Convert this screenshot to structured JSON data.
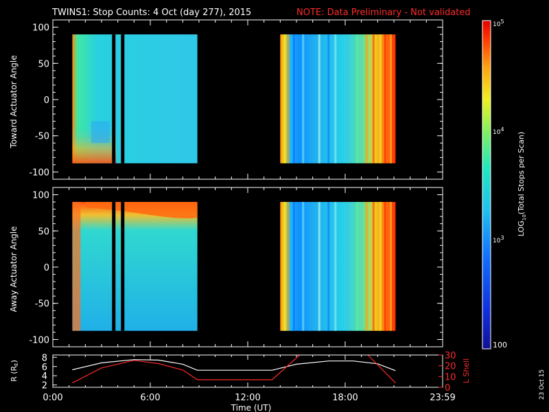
{
  "title": {
    "main": "TWINS1: Stop Counts:  4 Oct (day 277), 2015",
    "note": "NOTE: Data Preliminary - Not validated"
  },
  "date_stamp": "23 Oct 15",
  "chart_data": [
    {
      "type": "heatmap",
      "ylabel": "Toward Actuator Angle",
      "ylim": [
        -110,
        110
      ],
      "yticks": [
        "100",
        "50",
        "0",
        "-50",
        "-100"
      ],
      "xlim": [
        0,
        24
      ],
      "angle_range": [
        -88,
        90
      ],
      "intervals": [
        {
          "start": 1.2,
          "end": 8.9,
          "gaps": [
            3.75,
            4.3
          ]
        },
        {
          "start": 14.0,
          "end": 21.1
        }
      ],
      "zscale": "log",
      "zlim": [
        100,
        100000
      ]
    },
    {
      "type": "heatmap",
      "ylabel": "Away Actuator Angle",
      "ylim": [
        -110,
        110
      ],
      "yticks": [
        "100",
        "50",
        "0",
        "-50",
        "-100"
      ],
      "xlim": [
        0,
        24
      ],
      "angle_range": [
        -88,
        90
      ],
      "intervals": [
        {
          "start": 1.2,
          "end": 8.9,
          "gaps": [
            3.75,
            4.3
          ]
        },
        {
          "start": 14.0,
          "end": 21.1
        }
      ],
      "zscale": "log",
      "zlim": [
        100,
        100000
      ]
    },
    {
      "type": "line",
      "xlabel": "Time (UT)",
      "xlim": [
        0,
        24
      ],
      "xticks": [
        "0:00",
        "6:00",
        "12:00",
        "18:00",
        "23:59"
      ],
      "xtick_values": [
        0,
        6,
        12,
        18,
        24
      ],
      "left_axis": {
        "label_prefix": "R (R",
        "label_sub": "E",
        "label_suffix": ")",
        "ylim": [
          1.5,
          8.5
        ],
        "ticks": [
          "8",
          "6",
          "4",
          "2"
        ],
        "tick_values": [
          8,
          6,
          4,
          2
        ]
      },
      "right_axis": {
        "label": "L Shell",
        "ylim": [
          0,
          30
        ],
        "ticks": [
          "30",
          "20",
          "10",
          "0"
        ],
        "tick_values": [
          30,
          20,
          10,
          0
        ],
        "color": "#ff2a2a"
      },
      "series": [
        {
          "axis": "left",
          "color": "#ffffff",
          "x": [
            1.2,
            3,
            5,
            6.5,
            8,
            8.9,
            13.5,
            15,
            17,
            18.5,
            20,
            21.1
          ],
          "y": [
            5.3,
            6.8,
            7.5,
            7.4,
            6.5,
            5.2,
            5.2,
            6.5,
            7.2,
            7.2,
            6.6,
            5.1
          ]
        },
        {
          "axis": "right",
          "color": "#ff2a2a",
          "x": [
            1.2,
            3,
            5,
            6.5,
            8,
            8.9,
            13.5,
            15.2
          ],
          "y": [
            4,
            18,
            25,
            22,
            16,
            7,
            7,
            30
          ]
        },
        {
          "axis": "right",
          "color": "#ff2a2a",
          "x": [
            19.4,
            21.1
          ],
          "y": [
            30,
            4
          ]
        }
      ]
    }
  ],
  "colorbar": {
    "label_prefix": "LOG",
    "label_sub": "10",
    "label_suffix": "(Total Stops per Scan)",
    "top_label_base": "10",
    "top_label_exp": "5",
    "mid_label_base": "10",
    "mid_label_exp": "4",
    "low_label_base": "10",
    "low_label_exp": "3",
    "bottom_label": "100",
    "zlim": [
      100,
      100000
    ]
  }
}
